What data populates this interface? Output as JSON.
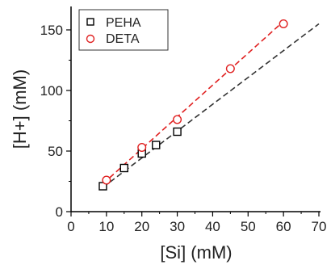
{
  "chart_data": {
    "type": "scatter",
    "title": "",
    "xlabel": "[Si] (mM)",
    "ylabel": "[H+] (mM)",
    "xlim": [
      0,
      70
    ],
    "ylim": [
      0,
      160
    ],
    "xticks": [
      0,
      10,
      20,
      30,
      40,
      50,
      60,
      70
    ],
    "yticks": [
      0,
      50,
      100,
      150
    ],
    "grid": false,
    "legend_position": "top-left",
    "series": [
      {
        "name": "PEHA",
        "marker": "square",
        "color": "#000000",
        "x": [
          9,
          15,
          20,
          24,
          30
        ],
        "y": [
          21,
          36,
          48,
          55,
          66
        ],
        "fit_line": {
          "x": [
            9,
            70
          ],
          "y": [
            20,
            155
          ],
          "color": "#333333"
        }
      },
      {
        "name": "DETA",
        "marker": "circle",
        "color": "#e02020",
        "x": [
          10,
          20,
          30,
          45,
          60
        ],
        "y": [
          26,
          53,
          76,
          118,
          155
        ],
        "fit_line": {
          "x": [
            9,
            60
          ],
          "y": [
            23,
            157
          ],
          "color": "#e02020"
        }
      }
    ]
  }
}
